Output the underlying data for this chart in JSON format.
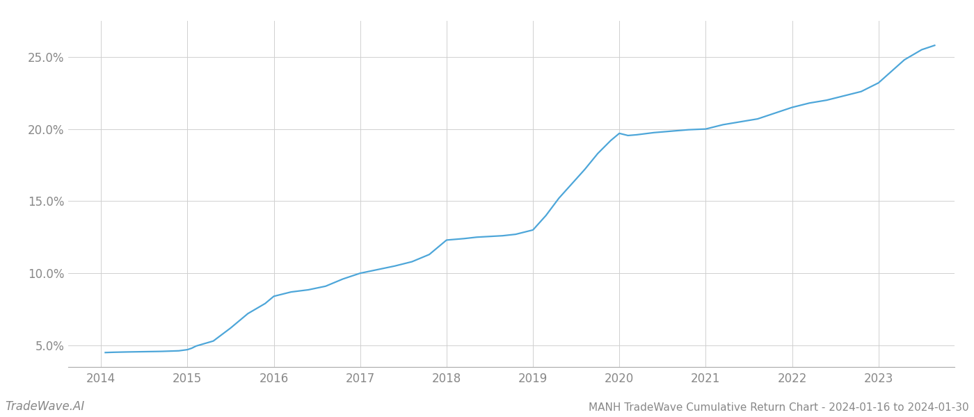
{
  "title": "MANH TradeWave Cumulative Return Chart - 2024-01-16 to 2024-01-30",
  "watermark": "TradeWave.AI",
  "line_color": "#4da6d9",
  "background_color": "#ffffff",
  "x_years": [
    2014,
    2015,
    2016,
    2017,
    2018,
    2019,
    2020,
    2021,
    2022,
    2023
  ],
  "x_values": [
    2014.05,
    2014.15,
    2014.3,
    2014.5,
    2014.7,
    2014.9,
    2015.0,
    2015.05,
    2015.1,
    2015.3,
    2015.5,
    2015.7,
    2015.9,
    2016.0,
    2016.1,
    2016.2,
    2016.4,
    2016.6,
    2016.8,
    2017.0,
    2017.2,
    2017.4,
    2017.6,
    2017.8,
    2018.0,
    2018.1,
    2018.2,
    2018.35,
    2018.5,
    2018.65,
    2018.8,
    2019.0,
    2019.15,
    2019.3,
    2019.45,
    2019.6,
    2019.75,
    2019.9,
    2020.0,
    2020.1,
    2020.2,
    2020.4,
    2020.6,
    2020.8,
    2021.0,
    2021.2,
    2021.4,
    2021.6,
    2021.8,
    2022.0,
    2022.2,
    2022.4,
    2022.5,
    2022.6,
    2022.8,
    2023.0,
    2023.15,
    2023.3,
    2023.5,
    2023.65
  ],
  "y_values": [
    4.5,
    4.52,
    4.54,
    4.56,
    4.58,
    4.62,
    4.7,
    4.8,
    4.95,
    5.3,
    6.2,
    7.2,
    7.9,
    8.4,
    8.55,
    8.7,
    8.85,
    9.1,
    9.6,
    10.0,
    10.25,
    10.5,
    10.8,
    11.3,
    12.3,
    12.35,
    12.4,
    12.5,
    12.55,
    12.6,
    12.7,
    13.0,
    14.0,
    15.2,
    16.2,
    17.2,
    18.3,
    19.2,
    19.7,
    19.55,
    19.6,
    19.75,
    19.85,
    19.95,
    20.0,
    20.3,
    20.5,
    20.7,
    21.1,
    21.5,
    21.8,
    22.0,
    22.15,
    22.3,
    22.6,
    23.2,
    24.0,
    24.8,
    25.5,
    25.8
  ],
  "ylim": [
    3.5,
    27.5
  ],
  "yticks": [
    5.0,
    10.0,
    15.0,
    20.0,
    25.0
  ],
  "xlim": [
    2013.62,
    2023.88
  ],
  "title_fontsize": 11,
  "tick_fontsize": 12,
  "watermark_fontsize": 12,
  "grid_color": "#d0d0d0",
  "tick_color": "#888888",
  "spine_color": "#aaaaaa"
}
